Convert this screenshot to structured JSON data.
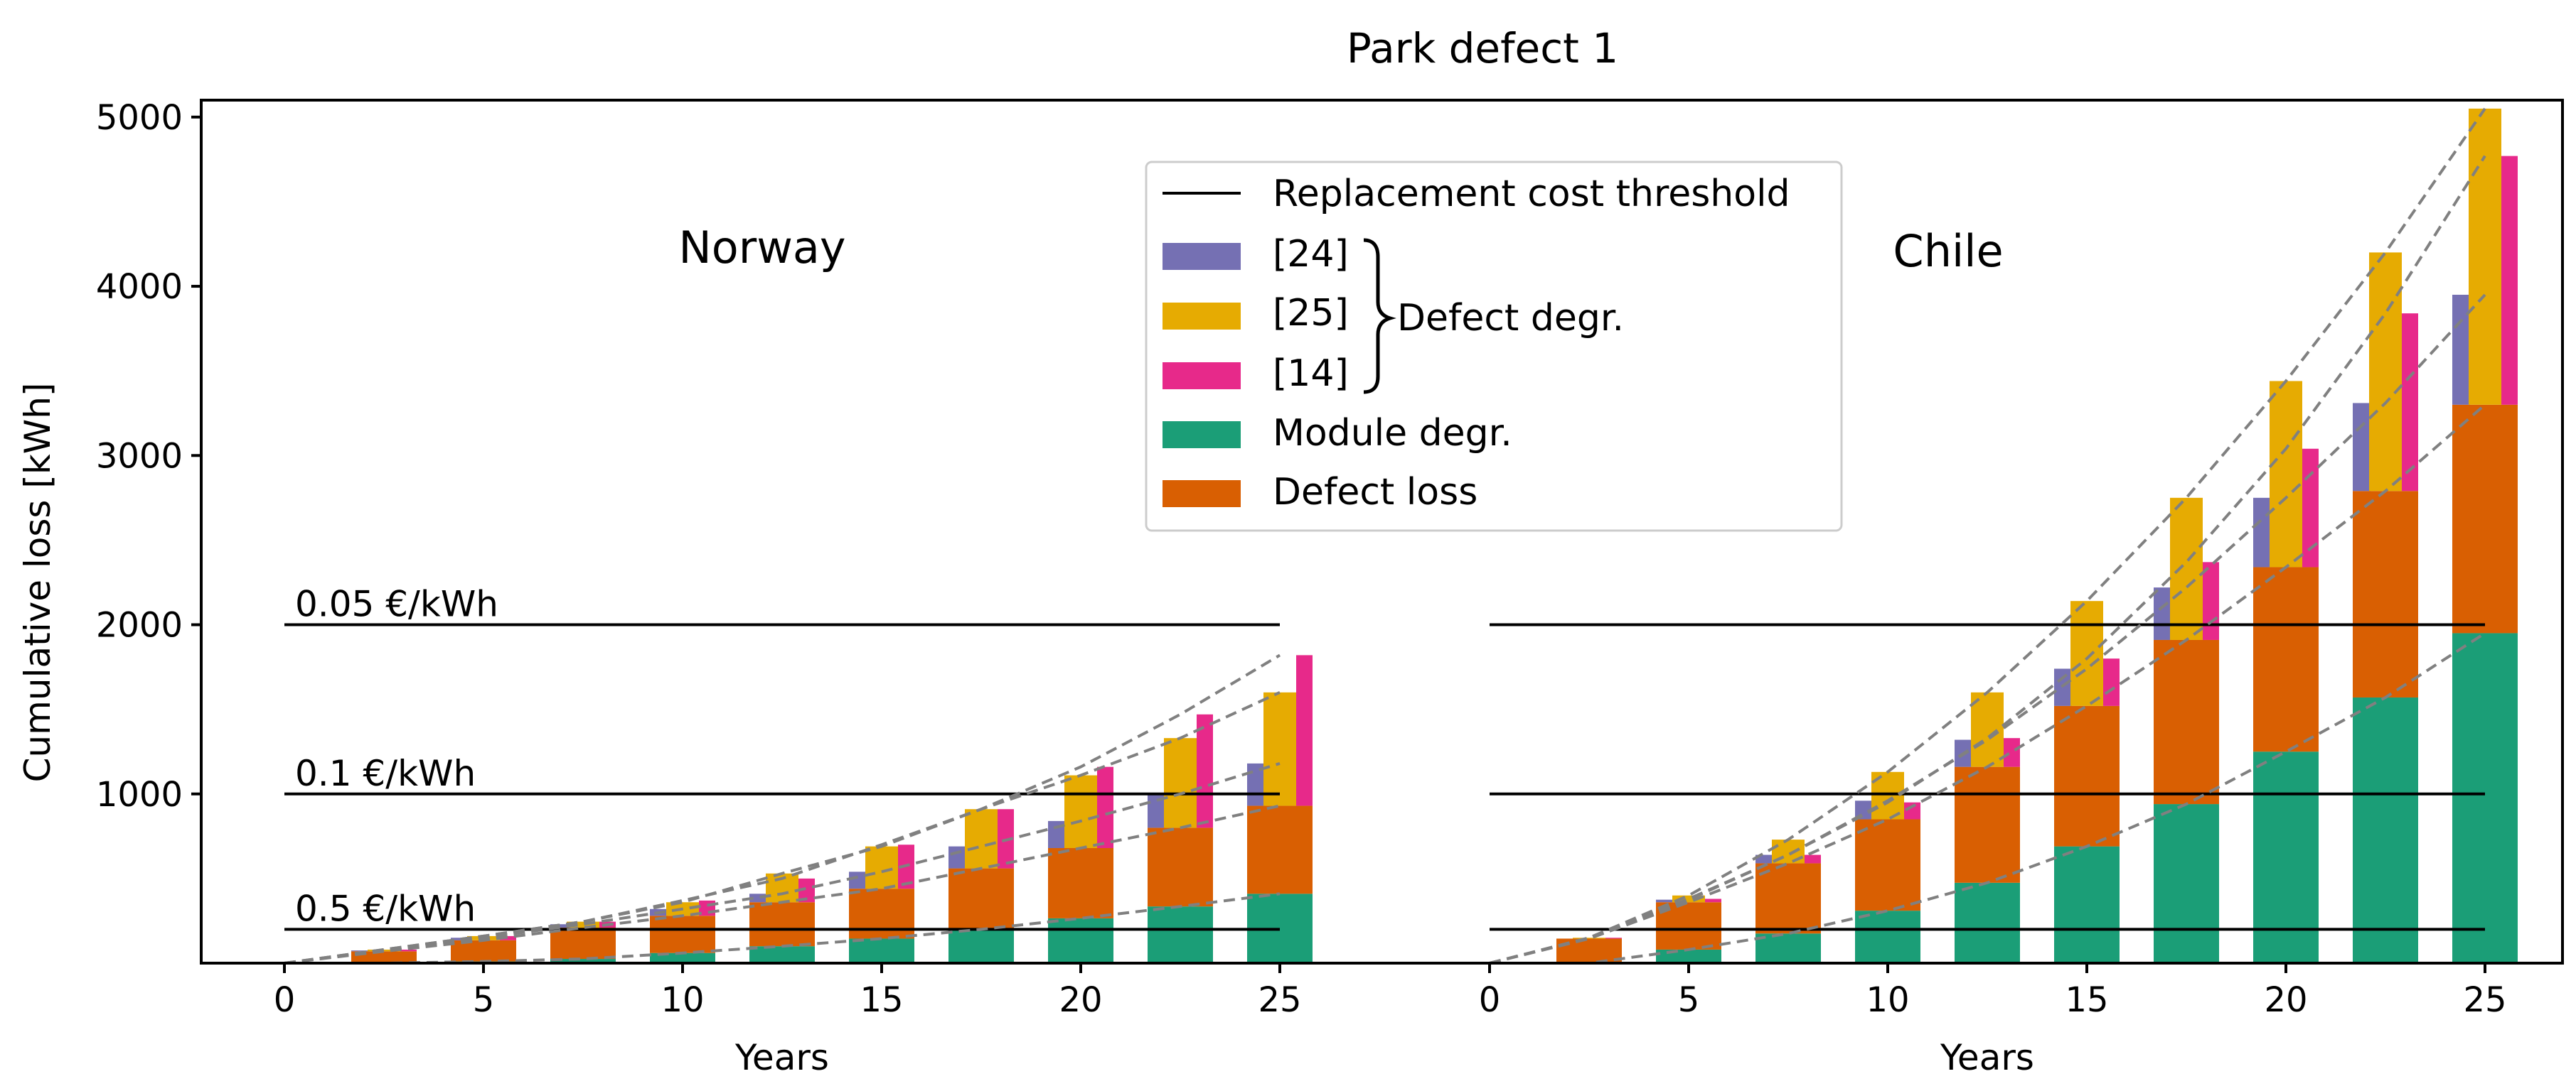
{
  "chart_data": {
    "type": "bar",
    "title": "Park defect 1",
    "ylabel": "Cumulative loss [kWh]",
    "xlabel": "Years",
    "ylim": [
      0,
      5100
    ],
    "yticks": [
      1000,
      2000,
      3000,
      4000,
      5000
    ],
    "xticks": [
      0,
      5,
      10,
      15,
      20,
      25
    ],
    "grid": false,
    "legend_position": "top-center",
    "colors": {
      "module": "#1b9e77",
      "defect_loss": "#d95f02",
      "d24": "#7570b3",
      "d25": "#e6ab02",
      "d14": "#e7298a",
      "trend": "#808080",
      "threshold": "#000000"
    },
    "legend": {
      "threshold": "Replacement cost threshold",
      "d24": "[24]",
      "d25": "[25]",
      "d14": "[14]",
      "brace_label": "Defect degr.",
      "module": "Module degr.",
      "defect_loss": "Defect loss"
    },
    "thresholds": [
      {
        "label": "0.05 €/kWh",
        "value": 2000
      },
      {
        "label": "0.1 €/kWh",
        "value": 1000
      },
      {
        "label": "0.5 €/kWh",
        "value": 200
      }
    ],
    "panels": [
      {
        "name": "Norway",
        "years": [
          2.5,
          5,
          7.5,
          10,
          12.5,
          15,
          17.5,
          20,
          22.5,
          25
        ],
        "module": [
          0,
          10,
          25,
          60,
          100,
          145,
          200,
          265,
          335,
          410
        ],
        "defect_loss": [
          70,
          135,
          210,
          280,
          360,
          440,
          560,
          680,
          800,
          930
        ],
        "d24": [
          75,
          150,
          230,
          320,
          410,
          540,
          690,
          840,
          1000,
          1180
        ],
        "d25": [
          80,
          160,
          245,
          360,
          530,
          690,
          910,
          1110,
          1330,
          1600
        ],
        "d14": [
          80,
          160,
          245,
          370,
          500,
          700,
          910,
          1160,
          1470,
          1820
        ]
      },
      {
        "name": "Chile",
        "years": [
          2.5,
          5,
          7.5,
          10,
          12.5,
          15,
          17.5,
          20,
          22.5,
          25
        ],
        "module": [
          0,
          80,
          175,
          310,
          475,
          690,
          940,
          1250,
          1570,
          1950
        ],
        "defect_loss": [
          145,
          360,
          590,
          850,
          1160,
          1520,
          1910,
          2340,
          2790,
          3300
        ],
        "d24": [
          145,
          375,
          640,
          960,
          1320,
          1740,
          2220,
          2750,
          3310,
          3950
        ],
        "d25": [
          150,
          400,
          730,
          1130,
          1600,
          2140,
          2750,
          3440,
          4200,
          5050
        ],
        "d14": [
          150,
          380,
          640,
          950,
          1330,
          1800,
          2370,
          3040,
          3840,
          4770
        ]
      }
    ]
  }
}
